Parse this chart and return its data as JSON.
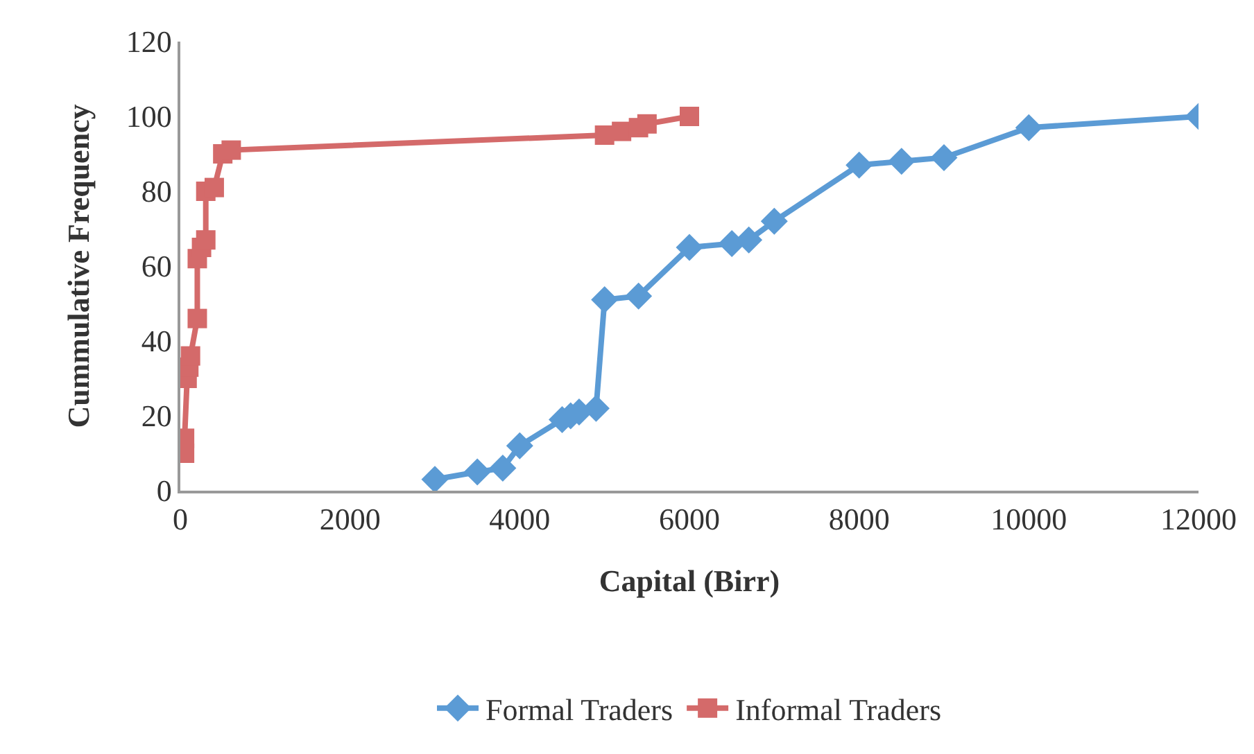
{
  "chart_data": {
    "type": "line",
    "xlabel": "Capital (Birr)",
    "ylabel": "Cummulative Frequency",
    "xlim": [
      0,
      12000
    ],
    "xticks": [
      0,
      2000,
      4000,
      6000,
      8000,
      10000,
      12000
    ],
    "ylim": [
      0,
      120
    ],
    "yticks": [
      0,
      20,
      40,
      60,
      80,
      100,
      120
    ],
    "grid": false,
    "legend": "bottom",
    "series": [
      {
        "name": "Formal Traders",
        "color": "#5b9bd5",
        "marker": "diamond",
        "x": [
          3000,
          3500,
          3800,
          4000,
          4500,
          4600,
          4700,
          4900,
          5000,
          5400,
          6000,
          6500,
          6700,
          7000,
          8000,
          8500,
          9000,
          10000,
          12000
        ],
        "values": [
          3,
          5,
          6,
          12,
          19,
          20,
          21,
          22,
          51,
          52,
          65,
          66,
          67,
          72,
          87,
          88,
          89,
          97,
          100
        ]
      },
      {
        "name": "Informal Traders",
        "color": "#d46a6a",
        "marker": "square",
        "x": [
          50,
          50,
          80,
          100,
          120,
          200,
          200,
          250,
          300,
          300,
          400,
          500,
          600,
          5000,
          5200,
          5400,
          5500,
          6000
        ],
        "values": [
          10,
          14,
          30,
          33,
          36,
          46,
          62,
          65,
          67,
          80,
          81,
          90,
          91,
          95,
          96,
          97,
          98,
          100
        ]
      }
    ]
  }
}
